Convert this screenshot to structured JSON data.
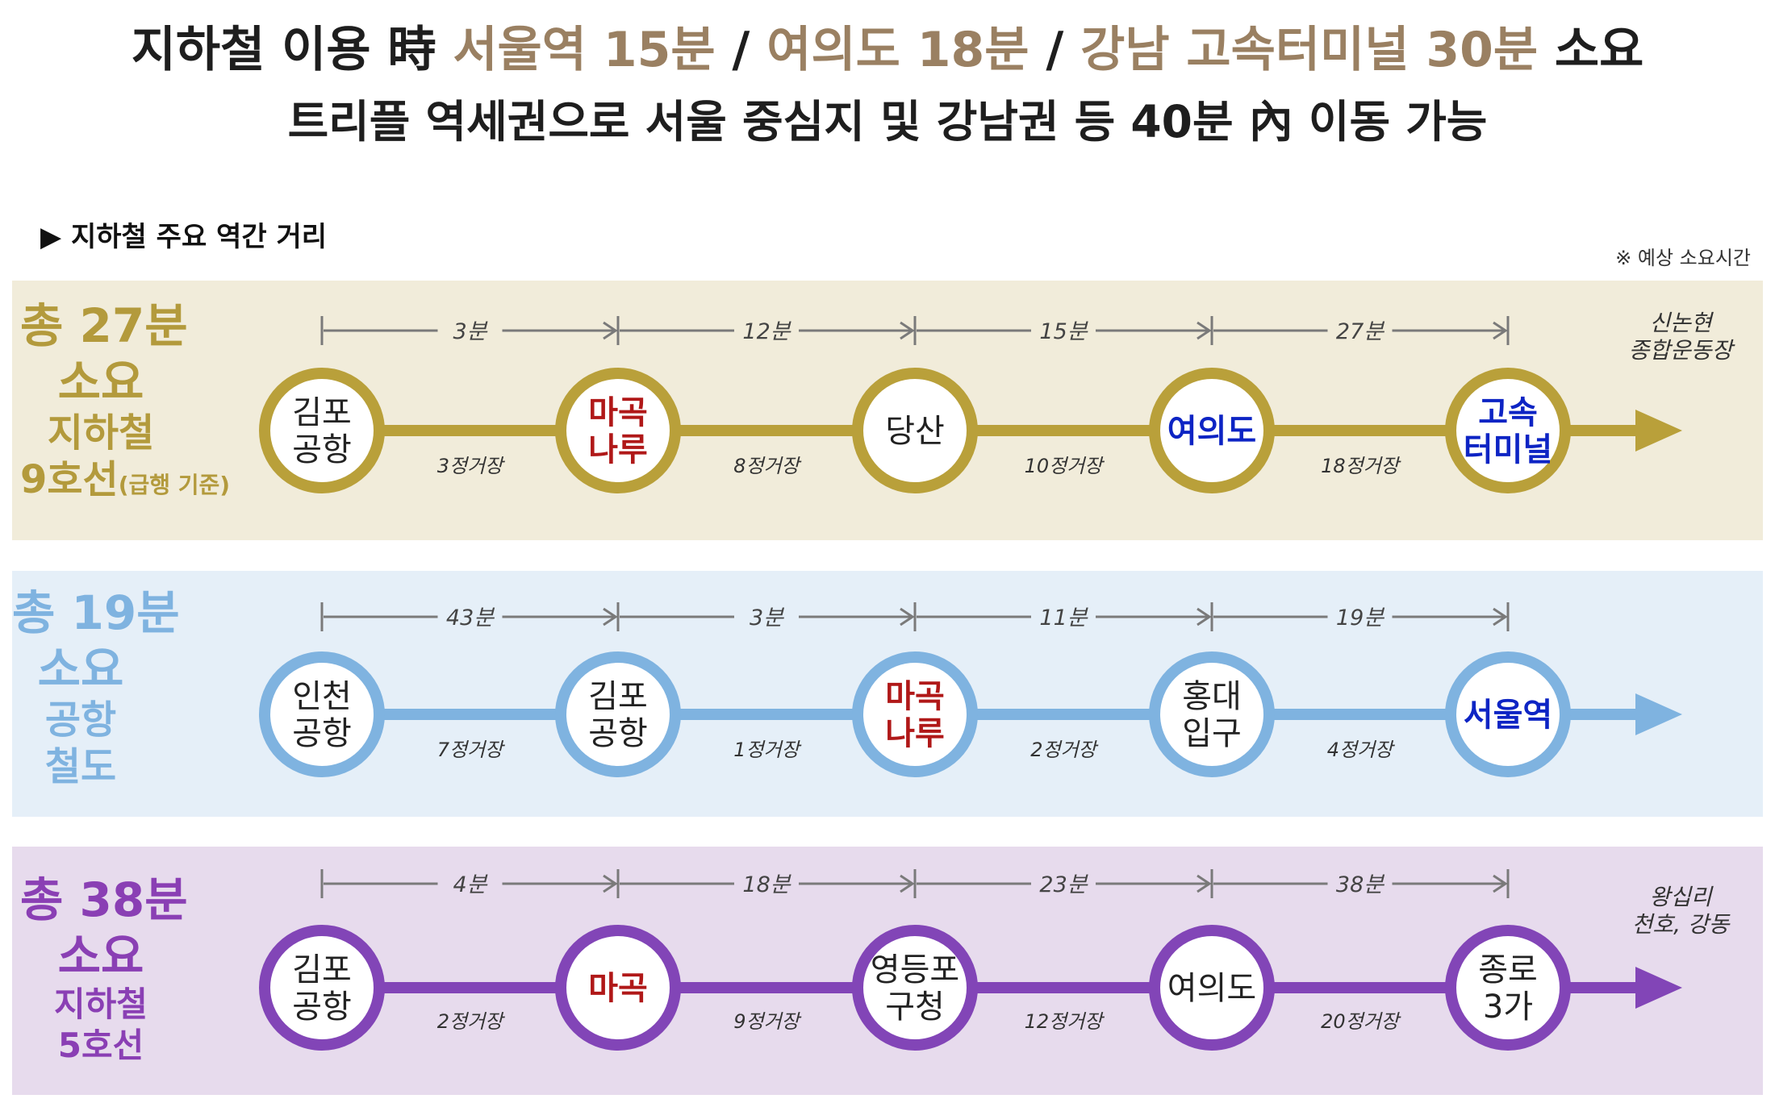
{
  "headline": {
    "line1_prefix": "지하철 이용 時 ",
    "line1_seoul": "서울역 15분",
    "line1_sep1": " / ",
    "line1_yeouido": "여의도 18분",
    "line1_sep2": " / ",
    "line1_gangnam": "강남 고속터미널 30분",
    "line1_suffix": " 소요",
    "line2": "트리플 역세권으로 서울 중심지 및 강남권 등 40분 內 이동 가능"
  },
  "section_title": "▶ 지하철 주요 역간 거리",
  "note": "※ 예상 소요시간",
  "lines": [
    {
      "label": [
        "총 27분",
        "소요",
        "지하철",
        "9호선"
      ],
      "label_small": "(급행 기준)",
      "color": "#b9a03a",
      "bg": "#f1ecda",
      "label_color": "#b39a3c",
      "stations": [
        {
          "name": [
            "김포",
            "공항"
          ],
          "color": "#222222"
        },
        {
          "name": [
            "마곡",
            "나루"
          ],
          "color": "#b01818"
        },
        {
          "name": [
            "당산"
          ],
          "color": "#222222"
        },
        {
          "name": [
            "여의도"
          ],
          "color": "#0d24c4"
        },
        {
          "name": [
            "고속",
            "터미널"
          ],
          "color": "#0d24c4"
        }
      ],
      "times": [
        "3분",
        "12분",
        "15분",
        "27분"
      ],
      "stops": [
        "3정거장",
        "8정거장",
        "10정거장",
        "18정거장"
      ],
      "destination": [
        "신논현",
        "종합운동장"
      ]
    },
    {
      "label": [
        "총 19분",
        "소요",
        "공항",
        "철도"
      ],
      "label_small": "",
      "color": "#7fb3e0",
      "bg": "#e5eff8",
      "label_color": "#7fb3e0",
      "stations": [
        {
          "name": [
            "인천",
            "공항"
          ],
          "color": "#222222"
        },
        {
          "name": [
            "김포",
            "공항"
          ],
          "color": "#222222"
        },
        {
          "name": [
            "마곡",
            "나루"
          ],
          "color": "#b01818"
        },
        {
          "name": [
            "홍대",
            "입구"
          ],
          "color": "#222222"
        },
        {
          "name": [
            "서울역"
          ],
          "color": "#0d24c4"
        }
      ],
      "times": [
        "43분",
        "3분",
        "11분",
        "19분"
      ],
      "stops": [
        "7정거장",
        "1정거장",
        "2정거장",
        "4정거장"
      ],
      "destination": []
    },
    {
      "label": [
        "총 38분",
        "소요",
        "지하철",
        "5호선"
      ],
      "label_small": "",
      "color": "#8245b7",
      "bg": "#e7dbed",
      "label_color": "#8a3fb4",
      "stations": [
        {
          "name": [
            "김포",
            "공항"
          ],
          "color": "#222222"
        },
        {
          "name": [
            "마곡"
          ],
          "color": "#b01818"
        },
        {
          "name": [
            "영등포",
            "구청"
          ],
          "color": "#222222"
        },
        {
          "name": [
            "여의도"
          ],
          "color": "#222222"
        },
        {
          "name": [
            "종로",
            "3가"
          ],
          "color": "#222222"
        }
      ],
      "times": [
        "4분",
        "18분",
        "23분",
        "38분"
      ],
      "stops": [
        "2정거장",
        "9정거장",
        "12정거장",
        "20정거장"
      ],
      "destination": [
        "왕십리",
        "천호, 강동"
      ]
    }
  ]
}
